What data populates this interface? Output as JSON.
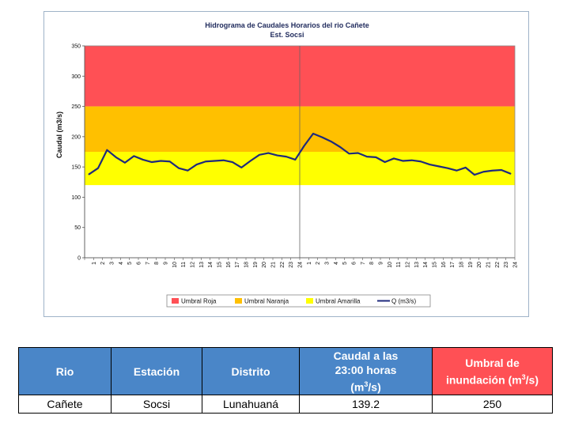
{
  "chart_data": {
    "type": "line",
    "title": "Hidrograma de Caudales Horarios del rio Cañete",
    "subtitle": "Est. Socsi",
    "ylabel": "Caudal  (m3/s)",
    "xlabel": "",
    "ylim": [
      0,
      350
    ],
    "yticks": [
      0,
      50,
      100,
      150,
      200,
      250,
      300,
      350
    ],
    "xticks": [
      "1",
      "2",
      "3",
      "4",
      "5",
      "6",
      "7",
      "8",
      "9",
      "10",
      "11",
      "12",
      "13",
      "14",
      "15",
      "16",
      "17",
      "18",
      "19",
      "20",
      "21",
      "22",
      "23",
      "24",
      "1",
      "2",
      "3",
      "4",
      "5",
      "6",
      "7",
      "8",
      "9",
      "10",
      "11",
      "12",
      "13",
      "14",
      "15",
      "16",
      "17",
      "18",
      "19",
      "20",
      "21",
      "22",
      "23",
      "24"
    ],
    "day_divider_after_tick": 24,
    "bands": [
      {
        "name": "Umbral Roja",
        "from": 250,
        "to": 350,
        "color": "#ff5055"
      },
      {
        "name": "Umbral Naranja",
        "from": 175,
        "to": 250,
        "color": "#ffc000"
      },
      {
        "name": "Umbral Amarilla",
        "from": 120,
        "to": 175,
        "color": "#ffff00"
      }
    ],
    "series": [
      {
        "name": "Q (m3/s)",
        "color": "#1f2a7c",
        "values": [
          138,
          148,
          178,
          166,
          157,
          168,
          162,
          158,
          160,
          159,
          148,
          144,
          154,
          159,
          160,
          161,
          158,
          149,
          160,
          170,
          173,
          169,
          167,
          162,
          185,
          205,
          199,
          192,
          183,
          172,
          173,
          167,
          166,
          158,
          164,
          160,
          161,
          159,
          154,
          151,
          148,
          144,
          149,
          137,
          142,
          144,
          145,
          139
        ]
      }
    ],
    "legend": [
      {
        "label": "Umbral Roja",
        "color": "#ff5055",
        "kind": "box"
      },
      {
        "label": "Umbral Naranja",
        "color": "#ffc000",
        "kind": "box"
      },
      {
        "label": "Umbral Amarilla",
        "color": "#ffff00",
        "kind": "box"
      },
      {
        "label": "Q (m3/s)",
        "color": "#1f2a7c",
        "kind": "line"
      }
    ],
    "legend_position": "bottom",
    "grid": false
  },
  "table": {
    "headers": {
      "rio": "Rio",
      "estacion": "Estación",
      "distrito": "Distrito",
      "caudal_line1": "Caudal a las",
      "caudal_line2": "23:00 horas",
      "caudal_unit_pre": "(m",
      "caudal_unit_sup": "3",
      "caudal_unit_post": "/s)",
      "umbral_line1": "Umbral de",
      "umbral_line2_pre": "inundación (m",
      "umbral_unit_sup": "3",
      "umbral_unit_post": "/s)"
    },
    "row": {
      "rio": "Cañete",
      "estacion": "Socsi",
      "distrito": "Lunahuaná",
      "caudal": "139.2",
      "umbral": "250"
    },
    "colors": {
      "header_blue": "#4a86c8",
      "header_red": "#ff5055"
    }
  }
}
